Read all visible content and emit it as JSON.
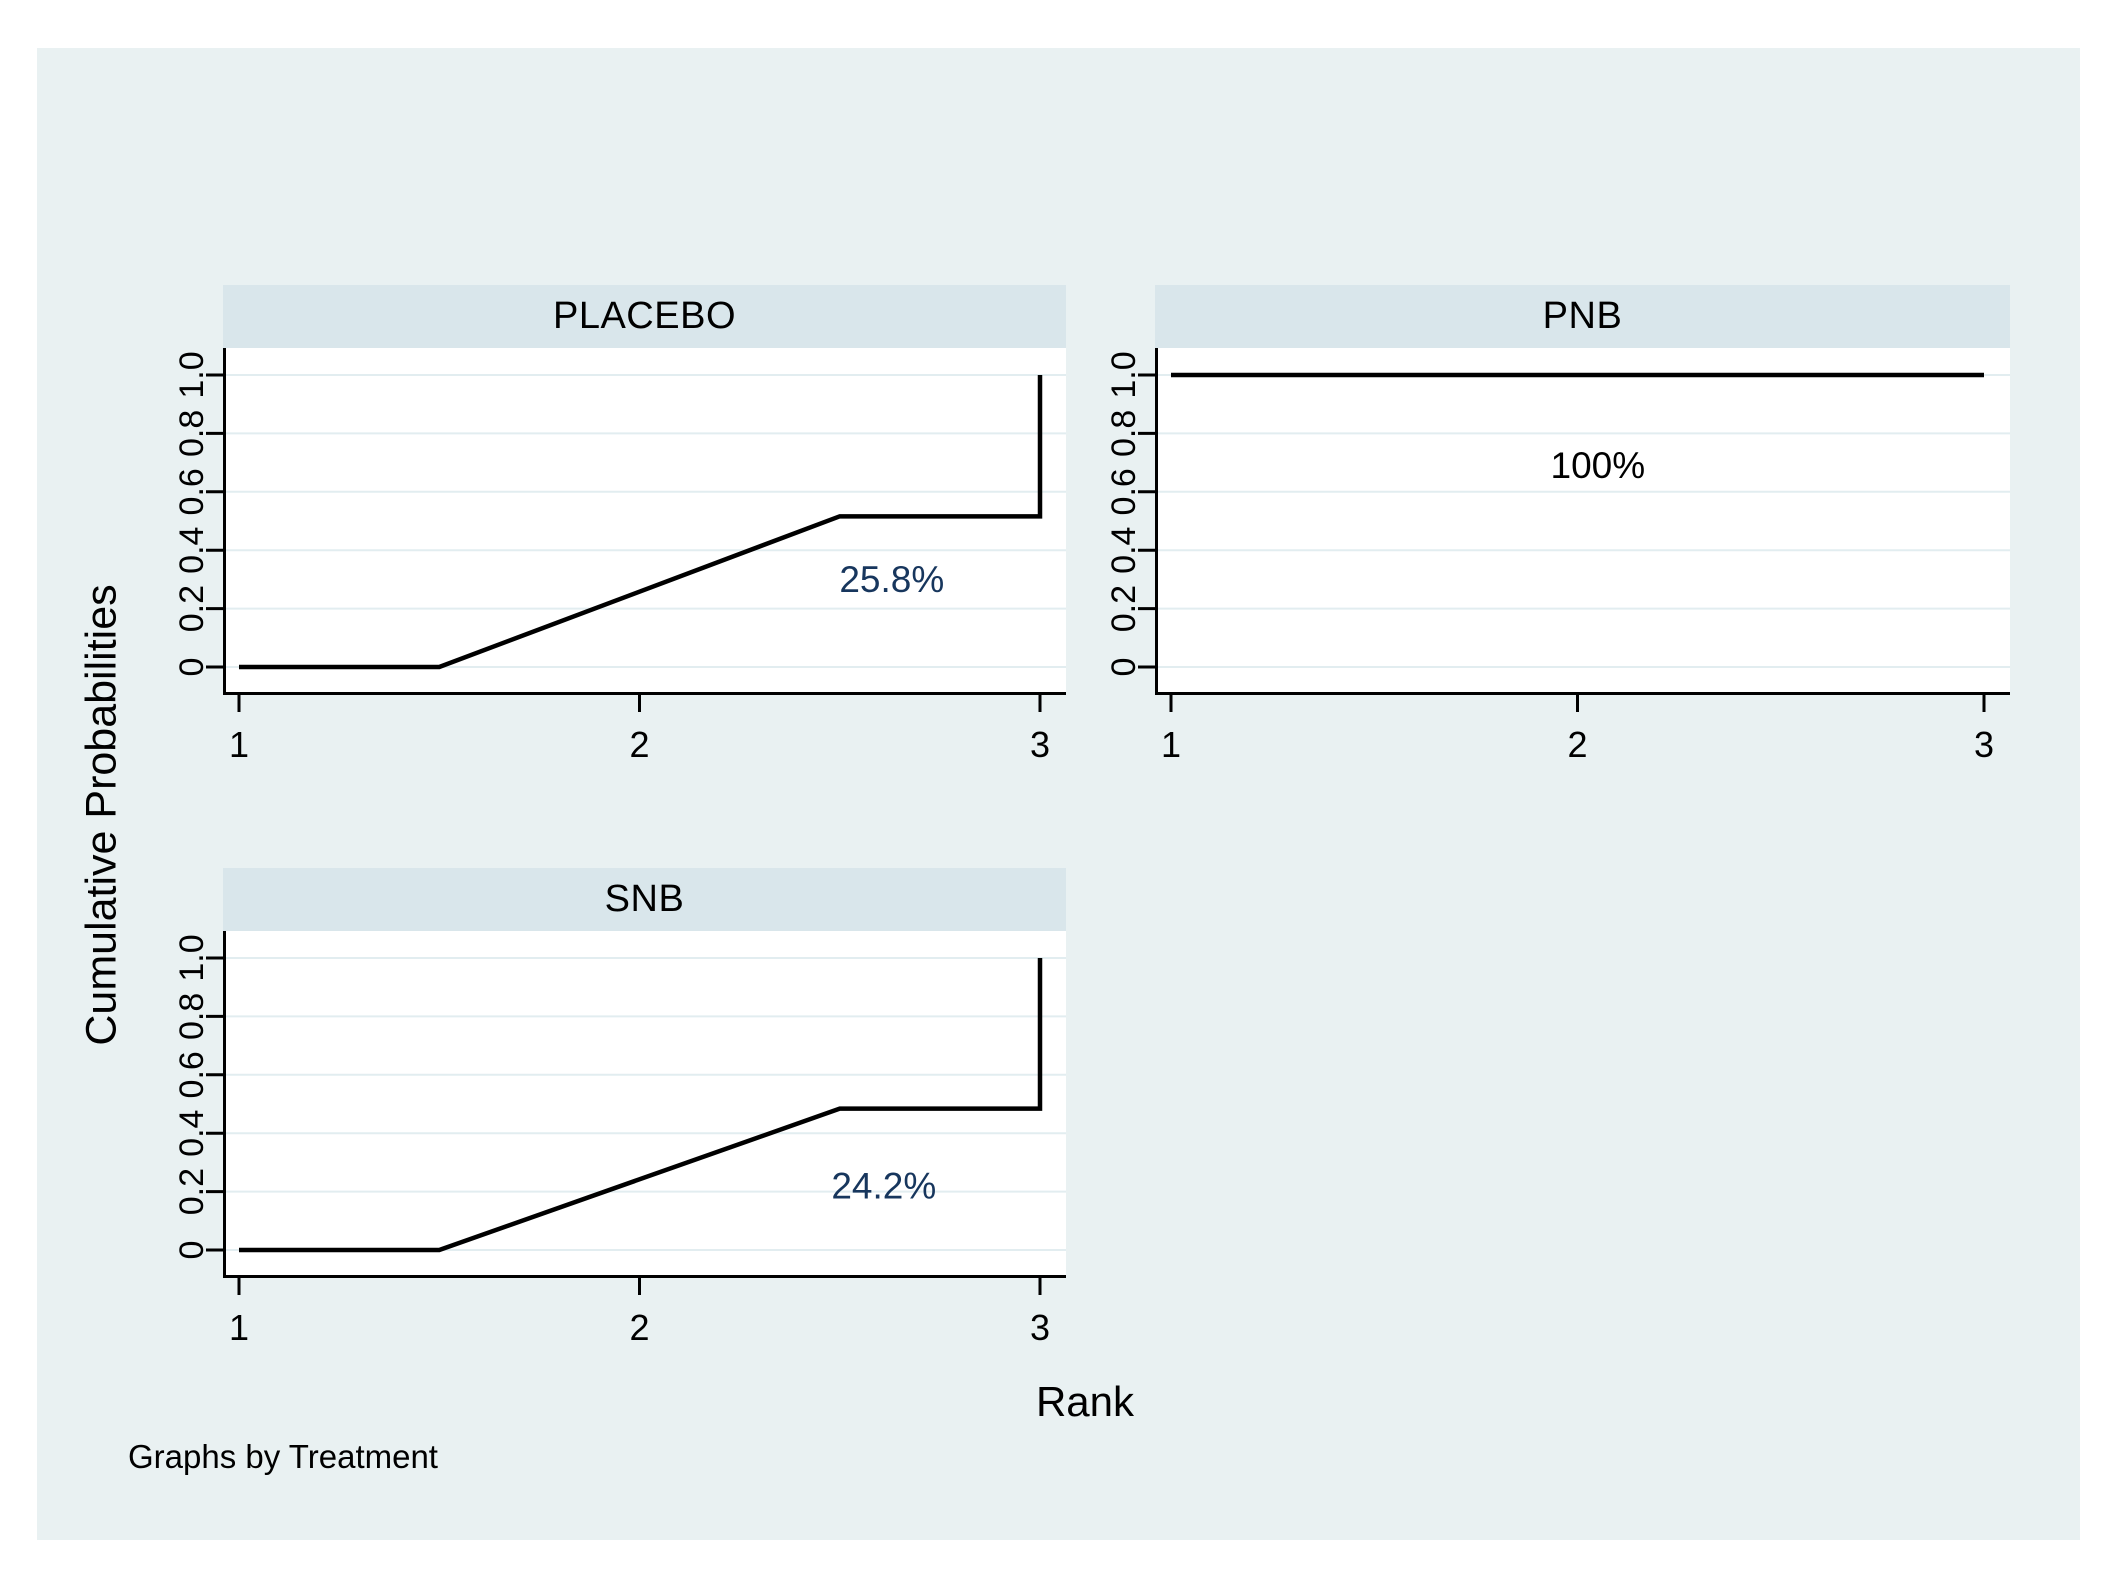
{
  "colors": {
    "page_background": "#ffffff",
    "canvas_background": "#e9f1f2",
    "band_background": "#d9e6eb",
    "plot_background": "#ffffff",
    "gridline": "#e2edf0",
    "axis": "#000000",
    "data_line": "#000000",
    "annotation_navy": "#17365d",
    "annotation_black": "#000000"
  },
  "chart_data": {
    "type": "line",
    "layout": "by-panels (2 columns x 2 rows, last cell empty)",
    "xlabel": "Rank",
    "ylabel": "Cumulative Probabilities",
    "note": "Graphs by Treatment",
    "xlim": [
      1,
      3
    ],
    "ylim": [
      0,
      1
    ],
    "x_ticks": [
      "1",
      "2",
      "3"
    ],
    "y_ticks": [
      "0",
      "0.2",
      "0.4",
      "0.6",
      "0.8",
      "1.0"
    ],
    "grid": true,
    "panels": [
      {
        "title": "PLACEBO",
        "points": [
          [
            1,
            0
          ],
          [
            1.5,
            0
          ],
          [
            2.5,
            0.516
          ],
          [
            3,
            0.516
          ],
          [
            3,
            1.0
          ]
        ],
        "annotation": {
          "text": "25.8%",
          "x": 2.63,
          "y": 0.3,
          "color": "navy"
        }
      },
      {
        "title": "PNB",
        "points": [
          [
            1,
            1.0
          ],
          [
            3,
            1.0
          ]
        ],
        "annotation": {
          "text": "100%",
          "x": 2.05,
          "y": 0.69,
          "color": "black"
        }
      },
      {
        "title": "SNB",
        "points": [
          [
            1,
            0
          ],
          [
            1.5,
            0
          ],
          [
            2.5,
            0.484
          ],
          [
            3,
            0.484
          ],
          [
            3,
            1.0
          ]
        ],
        "annotation": {
          "text": "24.2%",
          "x": 2.61,
          "y": 0.22,
          "color": "navy"
        }
      }
    ]
  }
}
